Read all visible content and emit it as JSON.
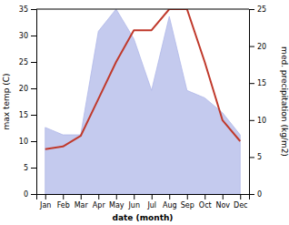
{
  "chart_data": {
    "type": "line",
    "xlabel": "date (month)",
    "ylabel": "max temp (C)",
    "y2label": "med. precipitation (kg/m2)",
    "categories": [
      "Jan",
      "Feb",
      "Mar",
      "Apr",
      "May",
      "Jun",
      "Jul",
      "Aug",
      "Sep",
      "Oct",
      "Nov",
      "Dec"
    ],
    "series": [
      {
        "type": "line",
        "color": "#c0392b",
        "values": [
          8.5,
          9.0,
          11.0,
          18.0,
          25.0,
          31.0,
          31.0,
          35.0,
          35.0,
          25.0,
          14.0,
          10.0
        ]
      },
      {
        "type": "area",
        "color": "#b0b8e8",
        "axis": "y2",
        "values": [
          9,
          8,
          8,
          22,
          25,
          21,
          14,
          24,
          14,
          13,
          11,
          8
        ]
      }
    ],
    "ylim": [
      0,
      35
    ],
    "yticks": [
      0,
      5,
      10,
      15,
      20,
      25,
      30,
      35
    ],
    "y2lim": [
      0,
      25
    ],
    "y2ticks": [
      0,
      5,
      10,
      15,
      20,
      25
    ],
    "grid": false
  }
}
